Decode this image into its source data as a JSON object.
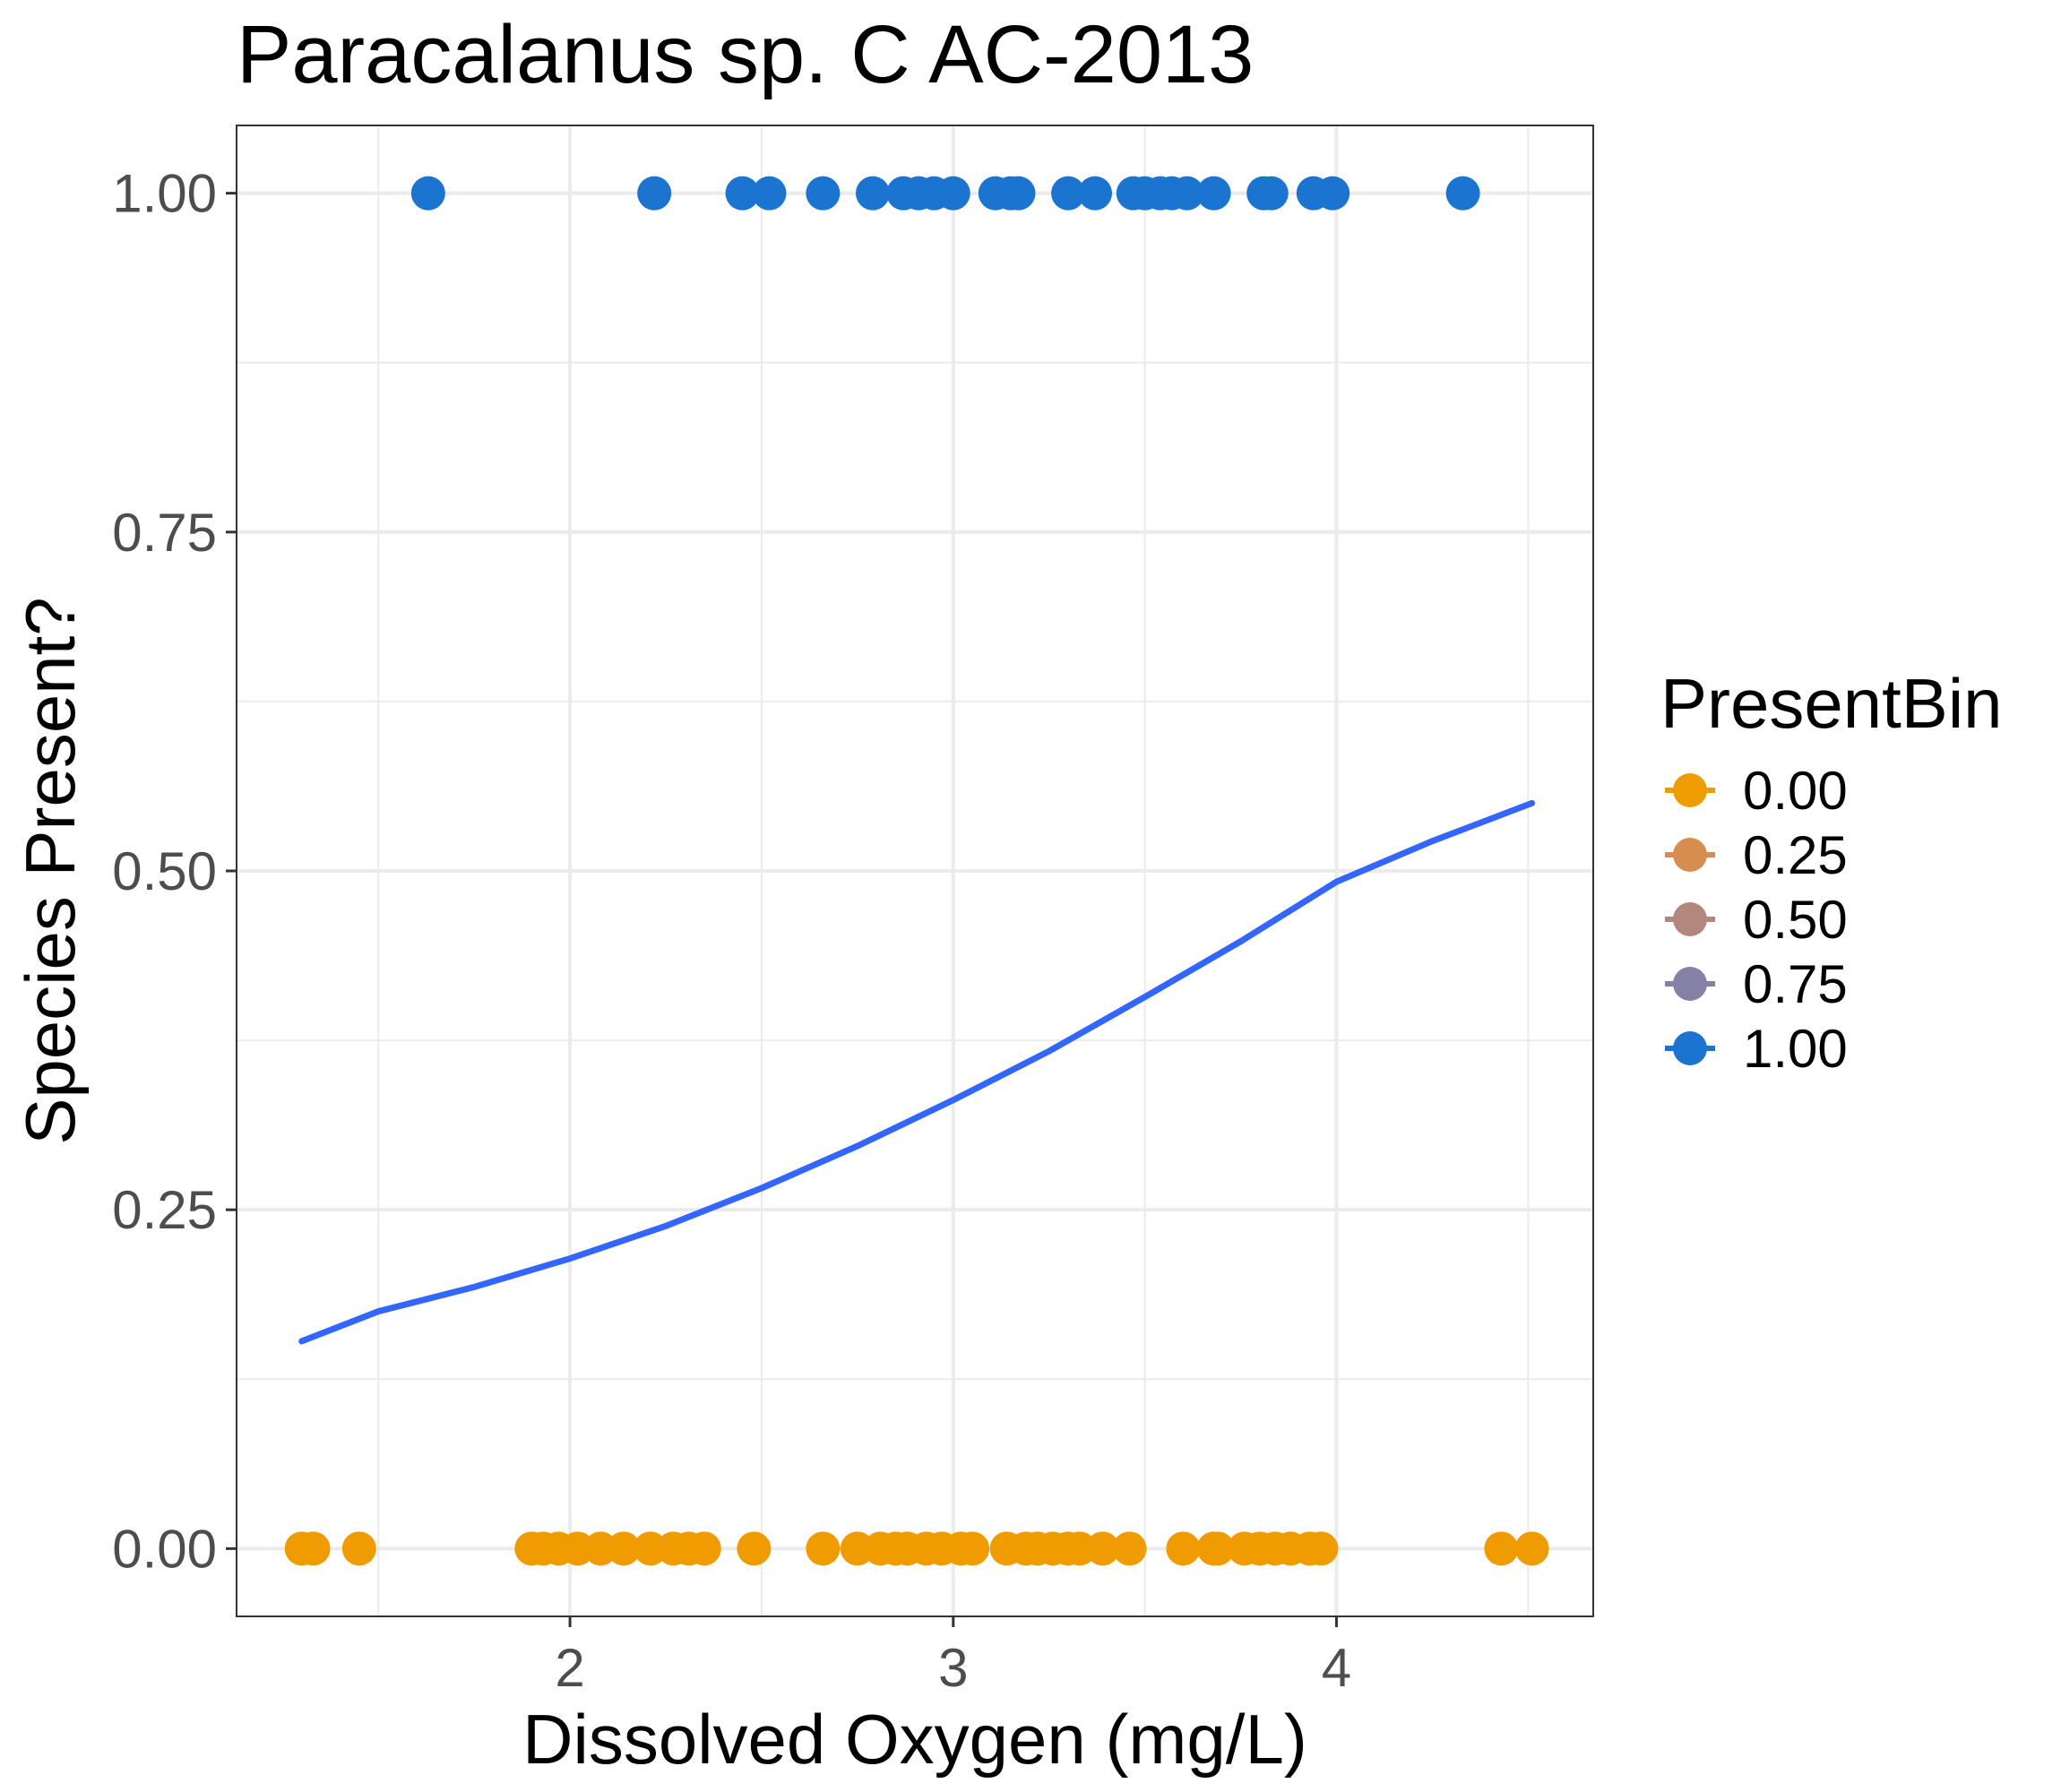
{
  "chart_data": {
    "type": "scatter",
    "title": "Paracalanus sp. C AC-2013",
    "xlabel": "Dissolved Oxygen (mg/L)",
    "ylabel": "Species Present?",
    "xlim": [
      1.13,
      4.67
    ],
    "ylim": [
      -0.05,
      1.05
    ],
    "x_ticks": [
      2,
      3,
      4
    ],
    "x_tick_labels": [
      "2",
      "3",
      "4"
    ],
    "x_minor_ticks": [
      1.5,
      2.5,
      3.5,
      4.5
    ],
    "y_ticks": [
      0,
      0.25,
      0.5,
      0.75,
      1
    ],
    "y_tick_labels": [
      "0.00",
      "0.25",
      "0.50",
      "0.75",
      "1.00"
    ],
    "y_minor_ticks": [
      0.125,
      0.375,
      0.625,
      0.875
    ],
    "grid": true,
    "legend": {
      "title": "PresentBin",
      "position": "right",
      "entries": [
        {
          "label": "0.00",
          "color": "#F09C00"
        },
        {
          "label": "0.25",
          "color": "#D68D4F"
        },
        {
          "label": "0.50",
          "color": "#B4877C"
        },
        {
          "label": "0.75",
          "color": "#8480A6"
        },
        {
          "label": "1.00",
          "color": "#1B75D0"
        }
      ]
    },
    "series": [
      {
        "value": 1.0,
        "color": "#1B75D0",
        "x": [
          1.63,
          2.22,
          2.45,
          2.52,
          2.66,
          2.79,
          2.87,
          2.91,
          2.95,
          3.0,
          3.11,
          3.15,
          3.17,
          3.3,
          3.37,
          3.47,
          3.5,
          3.54,
          3.57,
          3.61,
          3.68,
          3.81,
          3.83,
          3.94,
          3.99,
          4.33
        ]
      },
      {
        "value": 0.0,
        "color": "#F09C00",
        "x": [
          1.3,
          1.33,
          1.45,
          1.9,
          1.93,
          1.97,
          2.02,
          2.08,
          2.14,
          2.21,
          2.27,
          2.31,
          2.35,
          2.48,
          2.66,
          2.75,
          2.81,
          2.85,
          2.88,
          2.93,
          2.97,
          3.02,
          3.05,
          3.14,
          3.19,
          3.22,
          3.26,
          3.3,
          3.33,
          3.39,
          3.46,
          3.6,
          3.68,
          3.69,
          3.76,
          3.8,
          3.84,
          3.88,
          3.93,
          3.96,
          4.43,
          4.51
        ]
      }
    ],
    "fit_line": {
      "color": "#3366FF",
      "x": [
        1.3,
        1.5,
        1.75,
        2.0,
        2.25,
        2.5,
        2.75,
        3.0,
        3.25,
        3.5,
        3.75,
        4.0,
        4.25,
        4.51
      ],
      "y": [
        0.153,
        0.175,
        0.193,
        0.214,
        0.238,
        0.266,
        0.297,
        0.331,
        0.367,
        0.407,
        0.448,
        0.492,
        0.522,
        0.55
      ]
    }
  }
}
